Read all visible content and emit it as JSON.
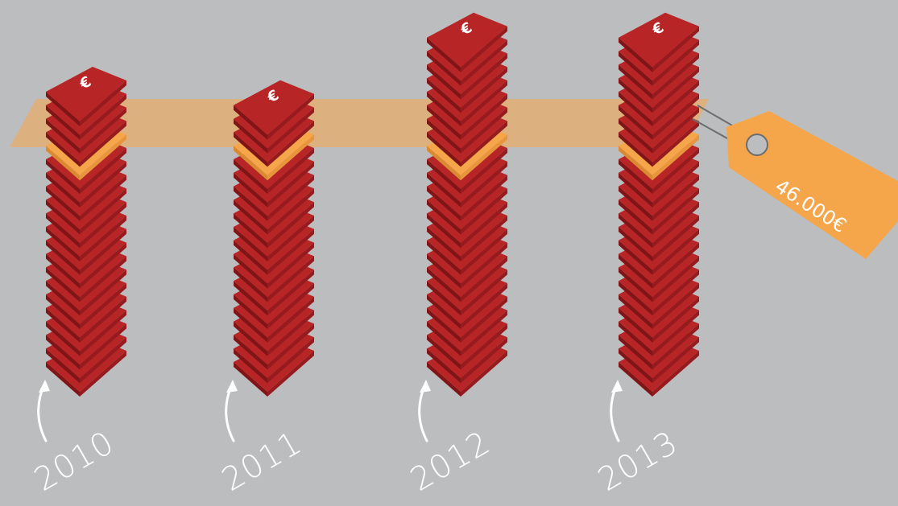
{
  "chart_data": {
    "type": "bar",
    "categories": [
      "2010",
      "2011",
      "2012",
      "2013"
    ],
    "values": [
      21,
      20,
      25,
      25
    ],
    "threshold_index": 16,
    "price_tag": "46.000€",
    "note_symbol": "€"
  },
  "colors": {
    "background": "#bcbdbe",
    "note_front": "#a71e22",
    "note_top": "#b82527",
    "note_dark": "#7f1517",
    "band": "#f5a64b",
    "tag": "#f5a64b",
    "text": "#ffffff"
  }
}
